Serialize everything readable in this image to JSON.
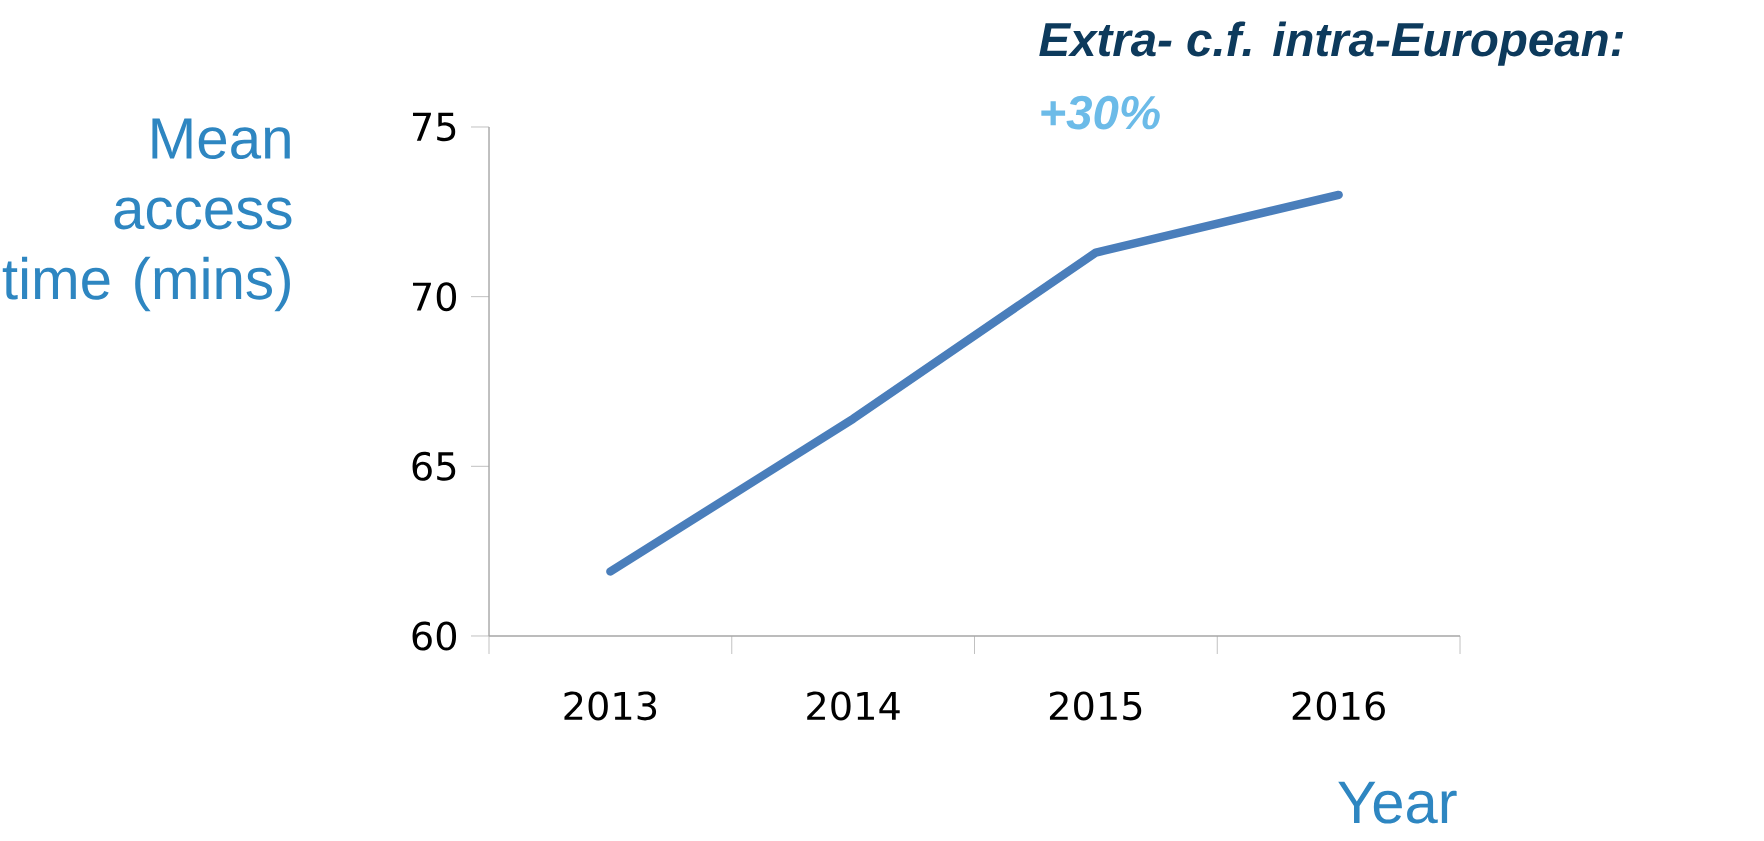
{
  "chart_data": {
    "type": "line",
    "title": "Extra- c.f. intra-European:",
    "subtitle": "+30%",
    "xlabel": "Year",
    "ylabel": "Mean access time (mins)",
    "categories": [
      "2013",
      "2014",
      "2015",
      "2016"
    ],
    "series": [
      {
        "color": "#4a7ebb",
        "values": [
          61.9,
          66.4,
          71.3,
          73.0
        ]
      }
    ],
    "ylim": [
      60,
      75
    ],
    "yticks": [
      60,
      65,
      70,
      75
    ]
  }
}
